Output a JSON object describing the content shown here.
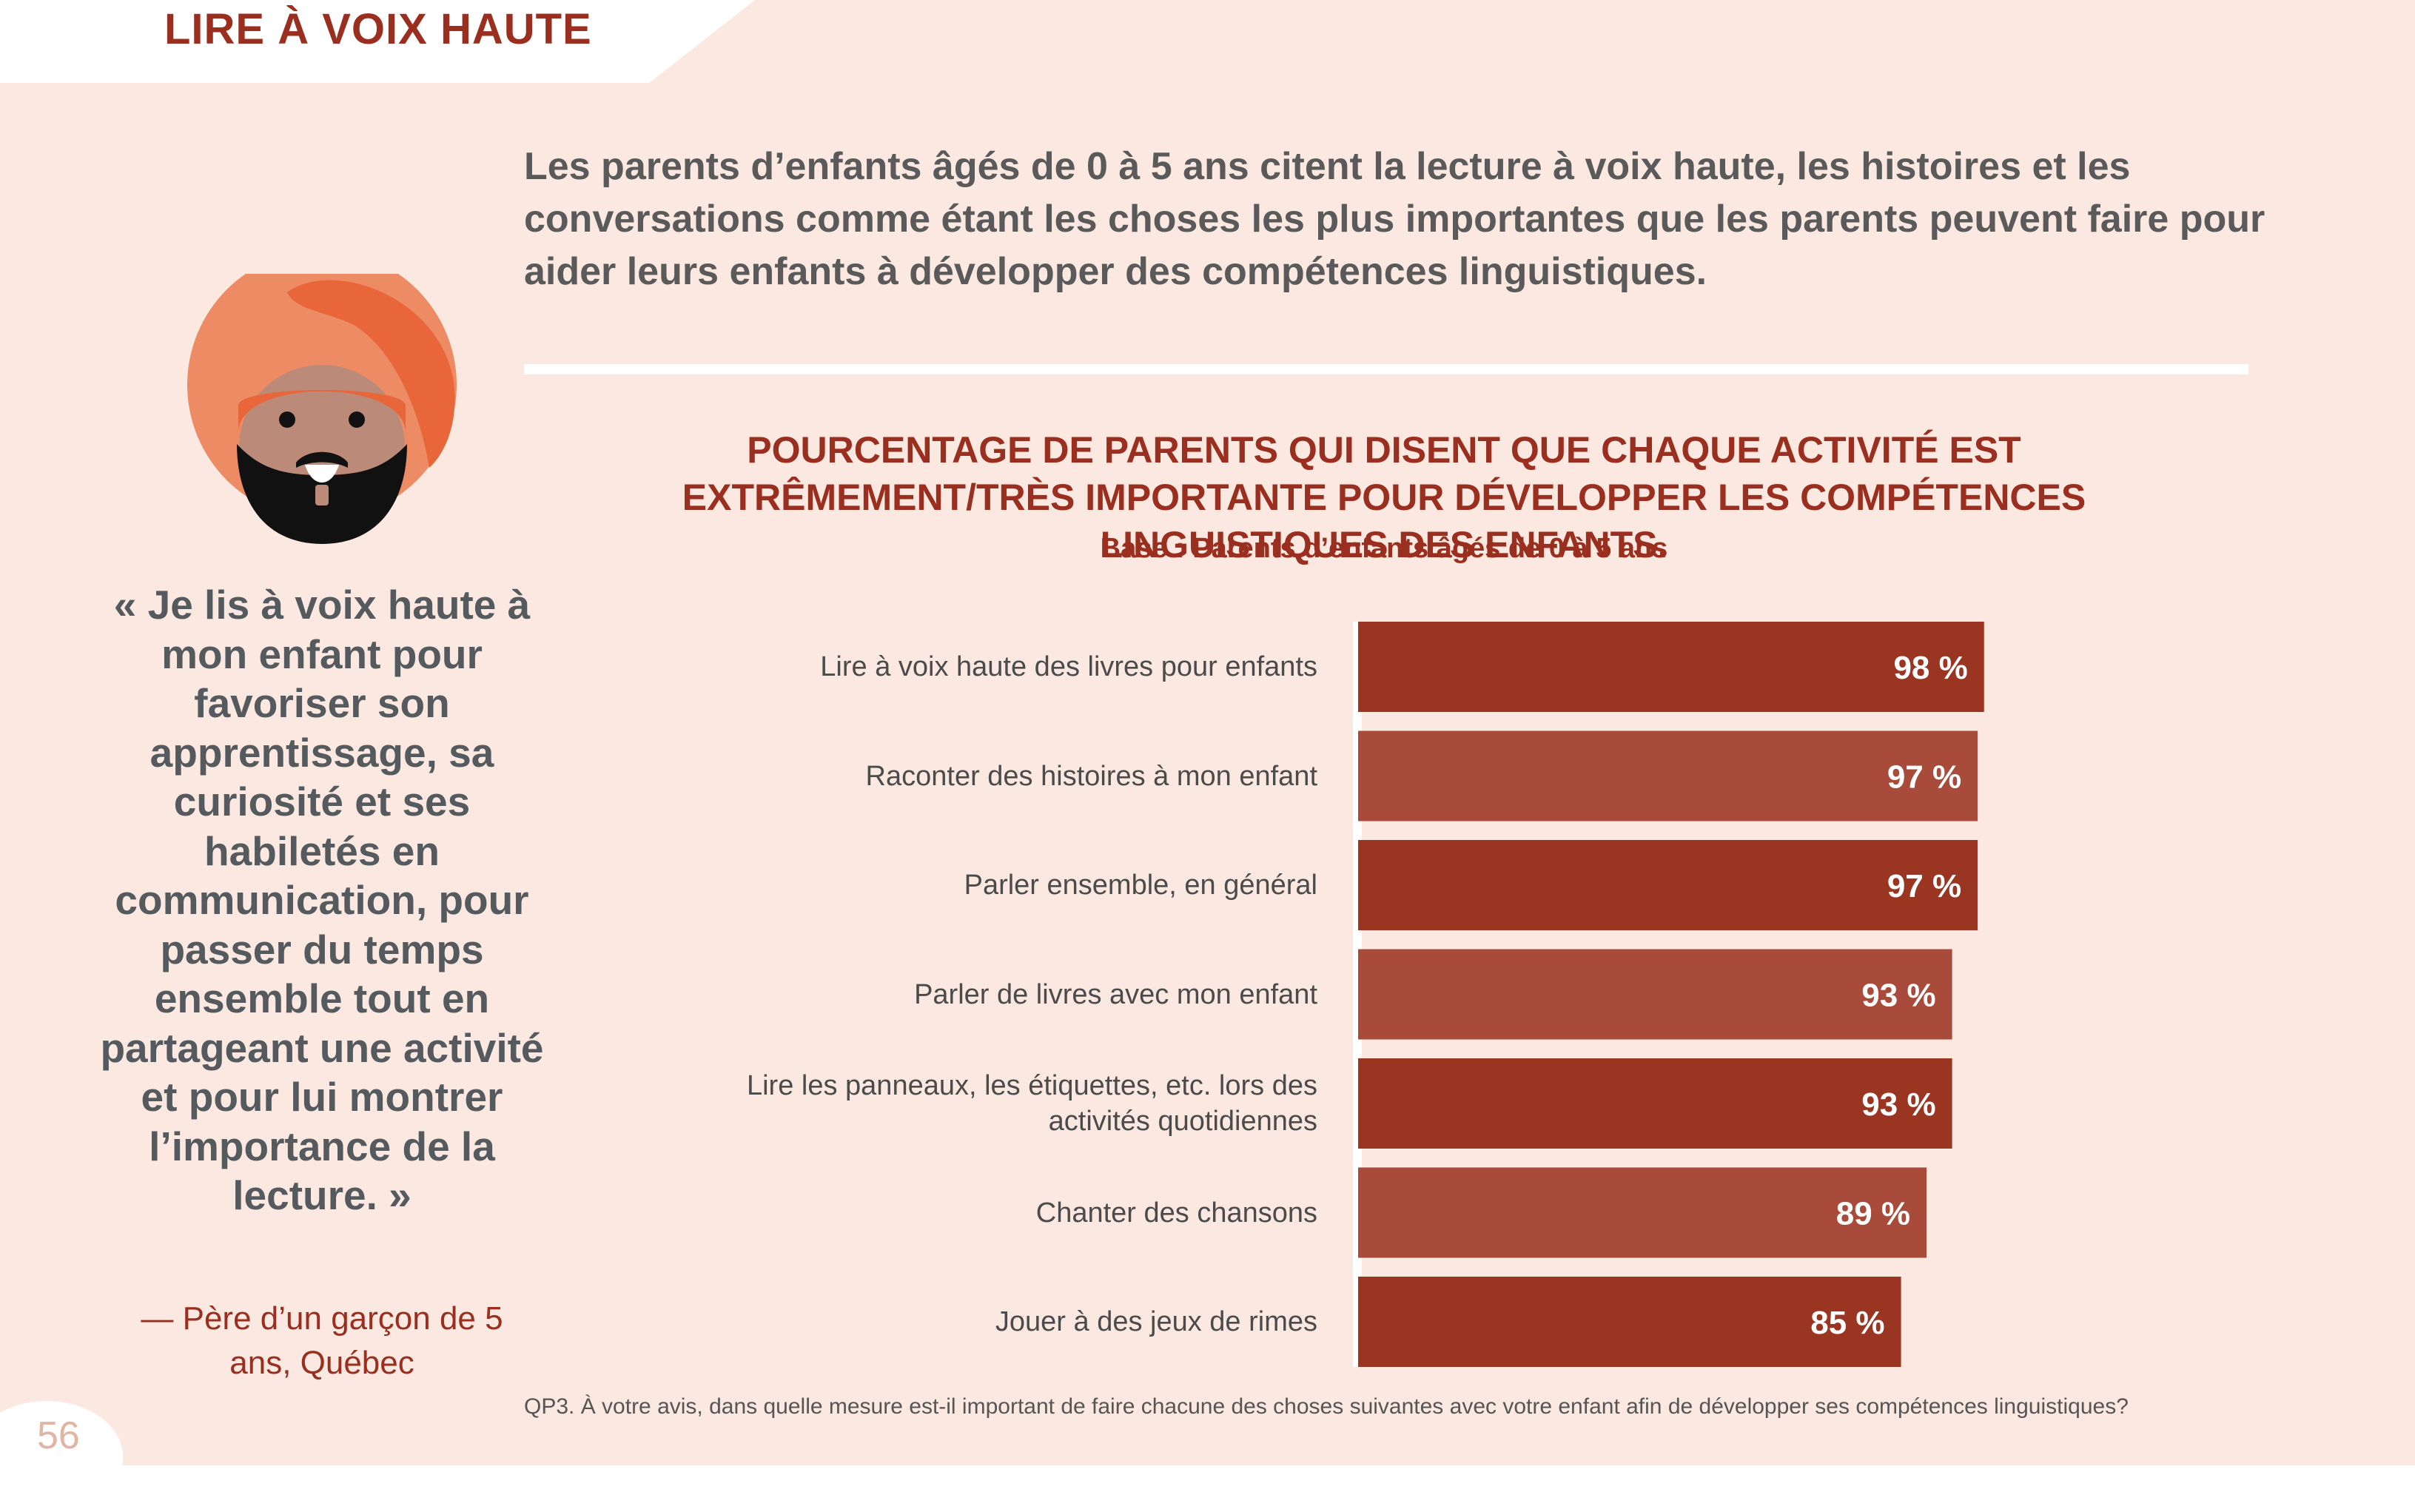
{
  "header": {
    "title": "LIRE À VOIX HAUTE"
  },
  "intro": {
    "text": "Les parents d’enfants âgés de 0 à 5 ans citent la lecture à voix haute, les histoires et les conversations comme étant les choses les plus importantes que les parents peuvent faire pour aider leurs enfants à développer des compétences linguistiques."
  },
  "quote": {
    "text": "« Je lis à voix haute à mon enfant pour favoriser son apprentissage, sa curiosité et ses habiletés en communication, pour passer du temps ensemble tout en partageant une activité et pour lui montrer l’importance de la lecture. »",
    "attribution": "— Père d’un garçon de 5 ans, Québec"
  },
  "colors": {
    "accent": "#9a2e1f",
    "bar_dark": "#9a3522",
    "bar_light": "#a84b3a",
    "background": "#fbe9e1"
  },
  "chart_data": {
    "type": "bar",
    "orientation": "horizontal",
    "title": "POURCENTAGE DE PARENTS QUI DISENT QUE CHAQUE ACTIVITÉ EST EXTRÊMEMENT/TRÈS IMPORTANTE POUR DÉVELOPPER LES COMPÉTENCES LINGUISTIQUES DES ENFANTS.",
    "subtitle": "Base : Parents d’enfants âgés de 0 à 5 ans",
    "categories": [
      "Lire à voix haute des livres pour enfants",
      "Raconter des histoires à mon enfant",
      "Parler ensemble, en général",
      "Parler de livres avec mon enfant",
      "Lire les panneaux, les étiquettes, etc. lors des activités quotidiennes",
      "Chanter des chansons",
      "Jouer à des jeux de rimes"
    ],
    "values": [
      98,
      97,
      97,
      93,
      93,
      89,
      85
    ],
    "value_labels": [
      "98 %",
      "97 %",
      "97 %",
      "93 %",
      "93 %",
      "89 %",
      "85 %"
    ],
    "xlim": [
      0,
      100
    ],
    "grid": false
  },
  "footnote": "QP3. À votre avis, dans quelle mesure est-il important de faire chacune des choses suivantes avec votre enfant afin de développer ses compétences linguistiques?",
  "page_number": "56"
}
